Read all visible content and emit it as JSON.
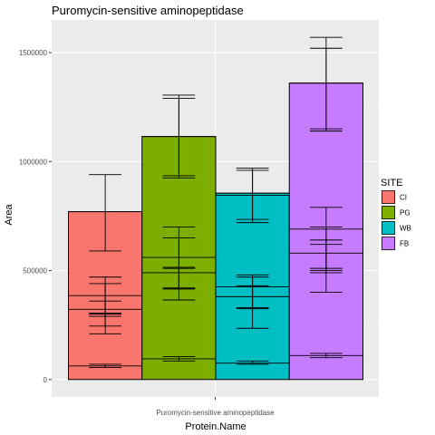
{
  "chart_data": {
    "type": "bar",
    "title": "Puromycin-sensitive aminopeptidase",
    "xlabel": "Protein.Name",
    "ylabel": "Area",
    "categories": [
      "Puromycin-sensitive aminopeptidase"
    ],
    "ylim": [
      -80000,
      1650000
    ],
    "yticks": [
      0,
      500000,
      1000000,
      1500000
    ],
    "ytick_labels": [
      "0",
      "500000",
      "1000000",
      "1500000"
    ],
    "grid": true,
    "legend_position": "right",
    "legend_title": "SITE",
    "series": [
      {
        "name": "CI",
        "color": "#F8766D",
        "total": 770000,
        "segments": [
          62000,
          322000,
          385000,
          770000
        ],
        "errorbars": [
          [
            55000,
            70000
          ],
          [
            210000,
            440000
          ],
          [
            245000,
            470000
          ],
          [
            590000,
            940000
          ],
          [
            290000,
            305000
          ],
          [
            300000,
            360000
          ]
        ]
      },
      {
        "name": "PG",
        "color": "#7CAE00",
        "total": 1115000,
        "segments": [
          95000,
          490000,
          560000,
          1115000
        ],
        "errorbars": [
          [
            85000,
            105000
          ],
          [
            365000,
            650000
          ],
          [
            420000,
            700000
          ],
          [
            935000,
            1305000
          ],
          [
            925000,
            1290000
          ],
          [
            420000,
            510000
          ],
          [
            415000,
            515000
          ]
        ]
      },
      {
        "name": "WB",
        "color": "#00BFC4",
        "total": 855000,
        "segments": [
          75000,
          380000,
          425000,
          845000,
          855000
        ],
        "errorbars": [
          [
            70000,
            85000
          ],
          [
            235000,
            480000
          ],
          [
            325000,
            470000
          ],
          [
            330000,
            430000
          ],
          [
            720000,
            970000
          ],
          [
            735000,
            960000
          ]
        ]
      },
      {
        "name": "FB",
        "color": "#C77CFF",
        "total": 1360000,
        "segments": [
          110000,
          580000,
          690000,
          1360000
        ],
        "errorbars": [
          [
            100000,
            120000
          ],
          [
            400000,
            700000
          ],
          [
            490000,
            790000
          ],
          [
            500000,
            620000
          ],
          [
            510000,
            640000
          ],
          [
            1140000,
            1570000
          ],
          [
            1150000,
            1520000
          ]
        ]
      }
    ]
  }
}
